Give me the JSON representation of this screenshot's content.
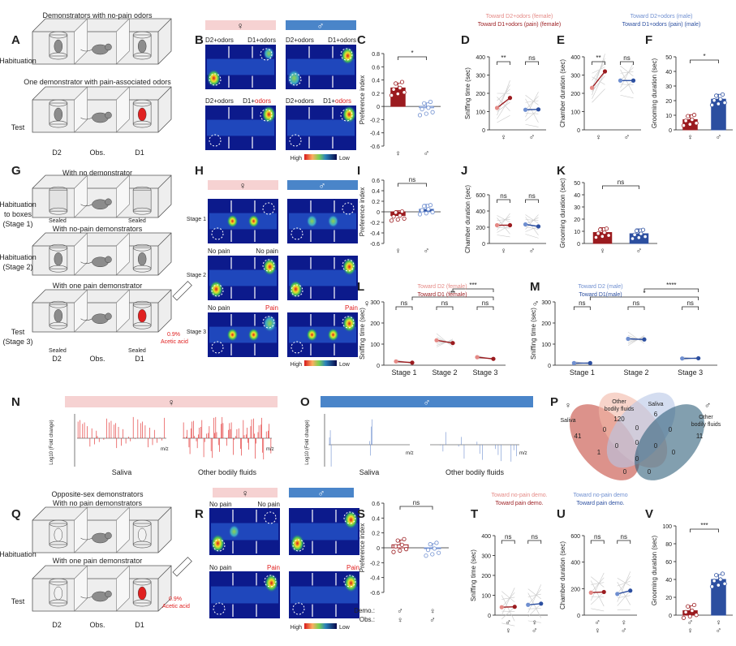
{
  "panel_letters": {
    "A": "A",
    "B": "B",
    "C": "C",
    "D": "D",
    "E": "E",
    "F": "F",
    "G": "G",
    "H": "H",
    "I": "I",
    "J": "J",
    "K": "K",
    "L": "L",
    "M": "M",
    "N": "N",
    "O": "O",
    "P": "P",
    "Q": "Q",
    "R": "R",
    "S": "S",
    "T": "T",
    "U": "U",
    "V": "V"
  },
  "symbols": {
    "female": "♀",
    "male": "♂"
  },
  "panel_A": {
    "title_top": "Demonstrators with no-pain odors",
    "title_mid": "One demonstrator with pain-associated odors",
    "row_habituation": "Habituation",
    "row_test": "Test",
    "cage_labels": [
      "D2",
      "Obs.",
      "D1"
    ]
  },
  "panel_B": {
    "top_left": "D2+odors",
    "top_right": "D1+odors",
    "bottom_left": "D2+odors",
    "bottom_right_prefix": "D1+",
    "bottom_right_red": "odors",
    "scale_high": "High",
    "scale_low": "Low"
  },
  "panel_G": {
    "title_top": "With no demonstrator",
    "title_mid": "With no-pain demonstrators",
    "title_bottom": "With one pain demonstrator",
    "row1_l1": "Habituation",
    "row1_l2": "to boxes",
    "row1_l3": "(Stage 1)",
    "row2_l1": "Habituation",
    "row2_l2": "(Stage 2)",
    "row3_l1": "Test",
    "row3_l2": "(Stage 3)",
    "sealed": "Sealed",
    "cage_labels": [
      "D2",
      "Obs.",
      "D1"
    ],
    "acid_l1": "0.9%",
    "acid_l2": "Acetic acid"
  },
  "panel_H": {
    "stage1": "Stage 1",
    "stage2": "Stage 2",
    "stage3": "Stage 3",
    "no_pain": "No pain",
    "pain": "Pain",
    "scale_high": "High",
    "scale_low": "Low"
  },
  "panel_N": {
    "saliva": "Saliva",
    "other": "Other bodily fluids",
    "ylabel": "Log10 (Fold change)",
    "mz": "m/z"
  },
  "panel_O": {
    "saliva": "Saliva",
    "other": "Other bodily fluids",
    "ylabel": "Log10 (Fold change)",
    "mz": "m/z"
  },
  "panel_P": {
    "saliva_f": "Saliva",
    "other_f_l1": "Other",
    "other_f_l2": "bodily fluids",
    "saliva_m": "Saliva",
    "other_m_l1": "Other",
    "other_m_l2": "bodily fluids",
    "counts": [
      "41",
      "120",
      "6",
      "11",
      "0",
      "0",
      "0",
      "0",
      "0",
      "0",
      "1",
      "0",
      "0",
      "0",
      "0"
    ]
  },
  "panel_Q": {
    "title_top": "Opposite-sex demonstrators",
    "title_sub": "With no pain demonstrators",
    "title_mid": "With one pain demonstrator",
    "row_habituation": "Habituation",
    "row_test": "Test",
    "cage_labels": [
      "D2",
      "Obs.",
      "D1"
    ],
    "acid_l1": "0.9%",
    "acid_l2": "Acetic acid"
  },
  "panel_R": {
    "no_pain": "No pain",
    "pain": "Pain",
    "scale_high": "High",
    "scale_low": "Low"
  },
  "legends": {
    "D_f1": "Toward D2+odors (female)",
    "D_f2": "Toward D1+odors (pain) (female)",
    "D_m1": "Toward D2+odors (male)",
    "D_m2": "Toward D1+odors (pain) (male)",
    "L_1": "Toward D2 (female)",
    "L_2": "Toward D1 (female)",
    "M_1": "Toward D2 (male)",
    "M_2": "Toward D1(male)",
    "T_f1": "Toward no-pain demo.",
    "T_f2": "Toward pain demo.",
    "T_m1": "Toward  no-pain demo",
    "T_m2": "Toward  pain demo."
  },
  "axes": {
    "pref": "Preference index",
    "sniff": "Sniffing time (sec)",
    "chamber": "Chamber duration (sec)",
    "groom": "Grooming duration (sec)",
    "demo": "Demo.:",
    "obs": "Obs.:",
    "stages": [
      "Stage 1",
      "Stage 2",
      "Stage 3"
    ]
  },
  "sig": {
    "s1": "*",
    "s2": "**",
    "s3": "***",
    "s4": "****",
    "ns": "ns"
  },
  "colors": {
    "female": "#9b1b1f",
    "female_light": "#e58a86",
    "male": "#2c4fa0",
    "male_light": "#6f8fd0",
    "pink_bar": "#f6d2d2",
    "blue_bar": "#4a85c9"
  },
  "chart_data": [
    {
      "type": "bar",
      "panel": "C",
      "title": "",
      "ylabel": "Preference index",
      "categories": [
        "♀",
        "♂"
      ],
      "values": [
        0.28,
        -0.02
      ],
      "ylim": [
        -0.6,
        0.8
      ],
      "yticks": [
        -0.6,
        -0.4,
        -0.2,
        0.0,
        0.2,
        0.4,
        0.6,
        0.8
      ]
    },
    {
      "type": "line",
      "panel": "D",
      "ylabel": "Sniffing time (sec)",
      "groups": [
        "♀",
        "♂"
      ],
      "series": [
        {
          "name": "Toward D2+odors",
          "values": [
            120,
            110
          ]
        },
        {
          "name": "Toward D1+odors (pain)",
          "values": [
            175,
            112
          ]
        }
      ],
      "ylim": [
        0,
        400
      ],
      "yticks": [
        0,
        100,
        200,
        300,
        400
      ]
    },
    {
      "type": "line",
      "panel": "E",
      "ylabel": "Chamber duration (sec)",
      "groups": [
        "♀",
        "♂"
      ],
      "series": [
        {
          "name": "Toward D2+odors",
          "values": [
            230,
            270
          ]
        },
        {
          "name": "Toward D1+odors (pain)",
          "values": [
            320,
            270
          ]
        }
      ],
      "ylim": [
        0,
        400
      ],
      "yticks": [
        0,
        100,
        200,
        300,
        400
      ]
    },
    {
      "type": "bar",
      "panel": "F",
      "ylabel": "Grooming duration (sec)",
      "categories": [
        "♀",
        "♂"
      ],
      "values": [
        7,
        21
      ],
      "ylim": [
        0,
        50
      ],
      "yticks": [
        0,
        10,
        20,
        30,
        40,
        50
      ]
    },
    {
      "type": "bar",
      "panel": "I",
      "ylabel": "Preference index",
      "categories": [
        "♀",
        "♂"
      ],
      "values": [
        -0.07,
        0.05
      ],
      "ylim": [
        -0.6,
        0.6
      ],
      "yticks": [
        -0.6,
        -0.4,
        -0.2,
        0.0,
        0.2,
        0.4,
        0.6
      ]
    },
    {
      "type": "line",
      "panel": "J",
      "ylabel": "Chamber duration (sec)",
      "groups": [
        "♀",
        "♂"
      ],
      "series": [
        {
          "name": "D2",
          "values": [
            225,
            235
          ]
        },
        {
          "name": "D1",
          "values": [
            225,
            210
          ]
        }
      ],
      "ylim": [
        0,
        600
      ],
      "yticks": [
        0,
        200,
        400,
        600
      ]
    },
    {
      "type": "bar",
      "panel": "K",
      "ylabel": "Grooming duration (sec)",
      "categories": [
        "♀",
        "♂"
      ],
      "values": [
        9,
        8
      ],
      "ylim": [
        0,
        50
      ],
      "yticks": [
        0,
        10,
        20,
        30,
        40,
        50
      ]
    },
    {
      "type": "line",
      "panel": "L",
      "ylabel": "Sniffing time (sec)",
      "categories": [
        "Stage 1",
        "Stage 2",
        "Stage 3"
      ],
      "series": [
        {
          "name": "Toward D2 (female)",
          "values": [
            18,
            118,
            38
          ]
        },
        {
          "name": "Toward D1 (female)",
          "values": [
            12,
            105,
            30
          ]
        }
      ],
      "ylim": [
        0,
        300
      ],
      "yticks": [
        0,
        100,
        200,
        300
      ]
    },
    {
      "type": "line",
      "panel": "M",
      "ylabel": "Sniffing time (sec)",
      "categories": [
        "Stage 1",
        "Stage 2",
        "Stage 3"
      ],
      "series": [
        {
          "name": "Toward D2 (male)",
          "values": [
            10,
            125,
            32
          ]
        },
        {
          "name": "Toward D1(male)",
          "values": [
            10,
            122,
            33
          ]
        }
      ],
      "ylim": [
        0,
        300
      ],
      "yticks": [
        0,
        100,
        200,
        300
      ]
    },
    {
      "type": "bar",
      "panel": "S",
      "ylabel": "Preference index",
      "categories": [
        "♂→♀",
        "♀→♂"
      ],
      "values": [
        0.04,
        -0.01
      ],
      "ylim": [
        -0.6,
        0.6
      ],
      "yticks": [
        -0.6,
        -0.4,
        -0.2,
        0.0,
        0.2,
        0.4,
        0.6
      ]
    },
    {
      "type": "line",
      "panel": "T",
      "ylabel": "Sniffing time (sec)",
      "groups": [
        "♂/♀",
        "♀/♂"
      ],
      "series": [
        {
          "name": "Toward no-pain demo.",
          "values": [
            40,
            52
          ]
        },
        {
          "name": "Toward pain demo.",
          "values": [
            42,
            58
          ]
        }
      ],
      "ylim": [
        0,
        400
      ],
      "yticks": [
        0,
        100,
        200,
        300,
        400
      ]
    },
    {
      "type": "line",
      "panel": "U",
      "ylabel": "Chamber duration (sec)",
      "groups": [
        "♂/♀",
        "♀/♂"
      ],
      "series": [
        {
          "name": "Toward no-pain demo.",
          "values": [
            170,
            160
          ]
        },
        {
          "name": "Toward pain demo.",
          "values": [
            175,
            185
          ]
        }
      ],
      "ylim": [
        0,
        600
      ],
      "yticks": [
        0,
        200,
        400,
        600
      ]
    },
    {
      "type": "bar",
      "panel": "V",
      "ylabel": "Grooming duration (sec)",
      "categories": [
        "♂/♀",
        "♀/♂"
      ],
      "values": [
        5,
        40
      ],
      "ylim": [
        0,
        100
      ],
      "yticks": [
        0,
        20,
        40,
        60,
        80,
        100
      ]
    }
  ]
}
